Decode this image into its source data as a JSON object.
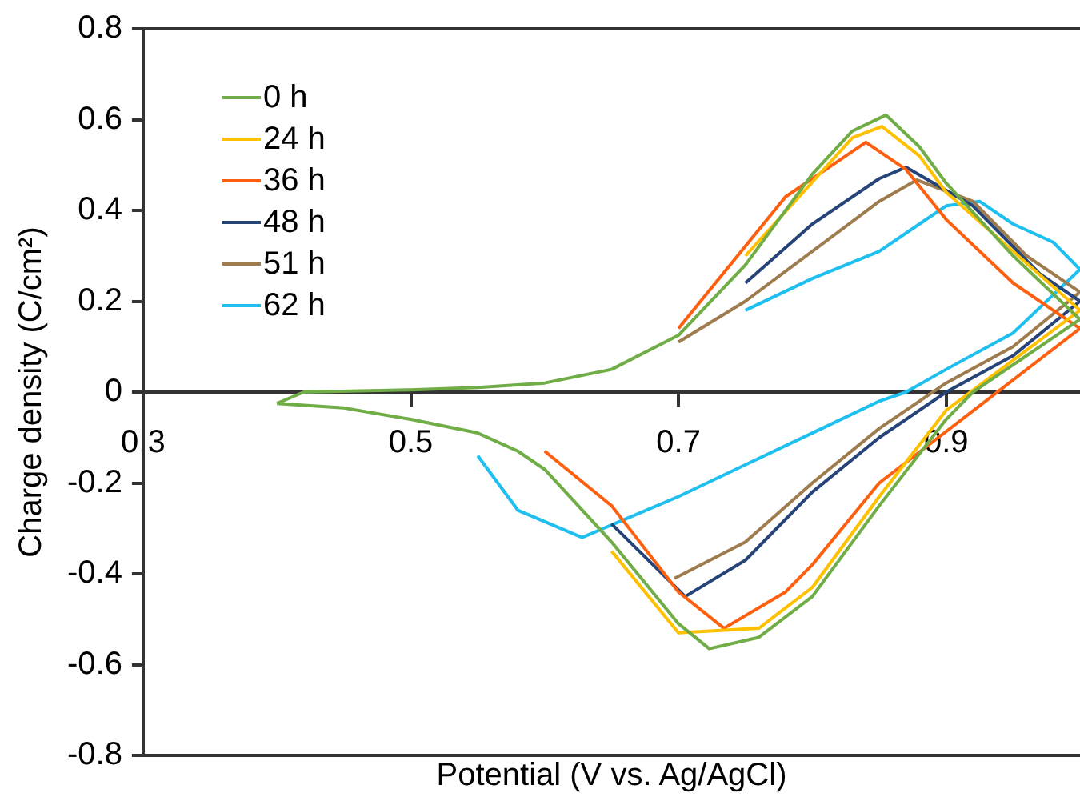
{
  "chart_data": {
    "type": "line",
    "xlabel": "Potential (V vs. Ag/AgCl)",
    "ylabel": "Charge density (C/cm²)",
    "xlim": [
      0.3,
      1.0
    ],
    "xticks": [
      0.3,
      0.5,
      0.7,
      0.9
    ],
    "ylim": [
      -0.8,
      0.8
    ],
    "yticks": [
      -0.8,
      -0.6,
      -0.4,
      -0.2,
      0,
      0.2,
      0.4,
      0.6,
      0.8
    ],
    "grid": false,
    "legend": "top left",
    "marker": "none",
    "line_style": "solid",
    "series": [
      {
        "name": "0 h",
        "color": "#70ad47",
        "x": [
          0.4,
          0.42,
          0.5,
          0.55,
          0.6,
          0.65,
          0.7,
          0.75,
          0.8,
          0.83,
          0.855,
          0.88,
          0.9,
          0.95,
          1.0
        ],
        "values": [
          -0.025,
          0,
          0.005,
          0.01,
          0.02,
          0.05,
          0.125,
          0.28,
          0.48,
          0.575,
          0.61,
          0.54,
          0.46,
          0.3,
          0.16
        ]
      },
      {
        "color": "#70ad47",
        "x": [
          0.4,
          0.45,
          0.5,
          0.55,
          0.58,
          0.6,
          0.65,
          0.7,
          0.723,
          0.76,
          0.8,
          0.85,
          0.9,
          0.92,
          0.95,
          1.0
        ],
        "values": [
          -0.025,
          -0.035,
          -0.06,
          -0.09,
          -0.13,
          -0.17,
          -0.33,
          -0.51,
          -0.565,
          -0.54,
          -0.45,
          -0.25,
          -0.06,
          0,
          0.06,
          0.16
        ]
      },
      {
        "name": "24 h",
        "color": "#ffc000",
        "x": [
          0.75,
          0.83,
          0.852,
          0.88,
          0.9,
          1.0
        ],
        "values": [
          0.3,
          0.56,
          0.585,
          0.52,
          0.44,
          0.18
        ]
      },
      {
        "color": "#ffc000",
        "x": [
          0.65,
          0.7,
          0.76,
          0.8,
          0.85,
          0.9,
          1.0
        ],
        "values": [
          -0.35,
          -0.53,
          -0.52,
          -0.43,
          -0.23,
          -0.04,
          0.18
        ]
      },
      {
        "name": "36 h",
        "color": "#ff6010",
        "x": [
          0.7,
          0.78,
          0.84,
          0.87,
          0.9,
          0.95,
          1.0
        ],
        "values": [
          0.14,
          0.43,
          0.55,
          0.49,
          0.38,
          0.24,
          0.14
        ]
      },
      {
        "color": "#ff6010",
        "x": [
          0.6,
          0.65,
          0.7,
          0.734,
          0.78,
          0.8,
          0.85,
          1.0
        ],
        "values": [
          -0.13,
          -0.25,
          -0.44,
          -0.52,
          -0.44,
          -0.38,
          -0.2,
          0.14
        ]
      },
      {
        "name": "48 h",
        "color": "#264478",
        "x": [
          0.75,
          0.8,
          0.85,
          0.87,
          0.92,
          0.97,
          1.0
        ],
        "values": [
          0.24,
          0.37,
          0.47,
          0.495,
          0.41,
          0.26,
          0.2
        ]
      },
      {
        "color": "#264478",
        "x": [
          0.65,
          0.705,
          0.75,
          0.8,
          0.85,
          0.9,
          0.95,
          1.0
        ],
        "values": [
          -0.29,
          -0.45,
          -0.37,
          -0.22,
          -0.1,
          0,
          0.08,
          0.2
        ]
      },
      {
        "name": "51 h",
        "color": "#9e7c4d",
        "x": [
          0.7,
          0.75,
          0.8,
          0.85,
          0.878,
          0.92,
          0.96,
          1.0
        ],
        "values": [
          0.11,
          0.2,
          0.31,
          0.42,
          0.467,
          0.42,
          0.3,
          0.22
        ]
      },
      {
        "color": "#9e7c4d",
        "x": [
          0.697,
          0.75,
          0.8,
          0.85,
          0.9,
          0.95,
          1.0
        ],
        "values": [
          -0.41,
          -0.33,
          -0.2,
          -0.08,
          0.02,
          0.1,
          0.22
        ]
      },
      {
        "name": "62 h",
        "color": "#1fbff0",
        "x": [
          0.75,
          0.8,
          0.85,
          0.88,
          0.9,
          0.925,
          0.95,
          0.98,
          1.0
        ],
        "values": [
          0.18,
          0.25,
          0.31,
          0.37,
          0.41,
          0.42,
          0.37,
          0.33,
          0.27
        ]
      },
      {
        "color": "#1fbff0",
        "x": [
          0.55,
          0.58,
          0.628,
          0.7,
          0.75,
          0.8,
          0.85,
          0.87,
          0.9,
          0.95,
          1.0
        ],
        "values": [
          -0.14,
          -0.26,
          -0.32,
          -0.23,
          -0.16,
          -0.09,
          -0.02,
          0,
          0.05,
          0.13,
          0.27
        ]
      }
    ]
  }
}
